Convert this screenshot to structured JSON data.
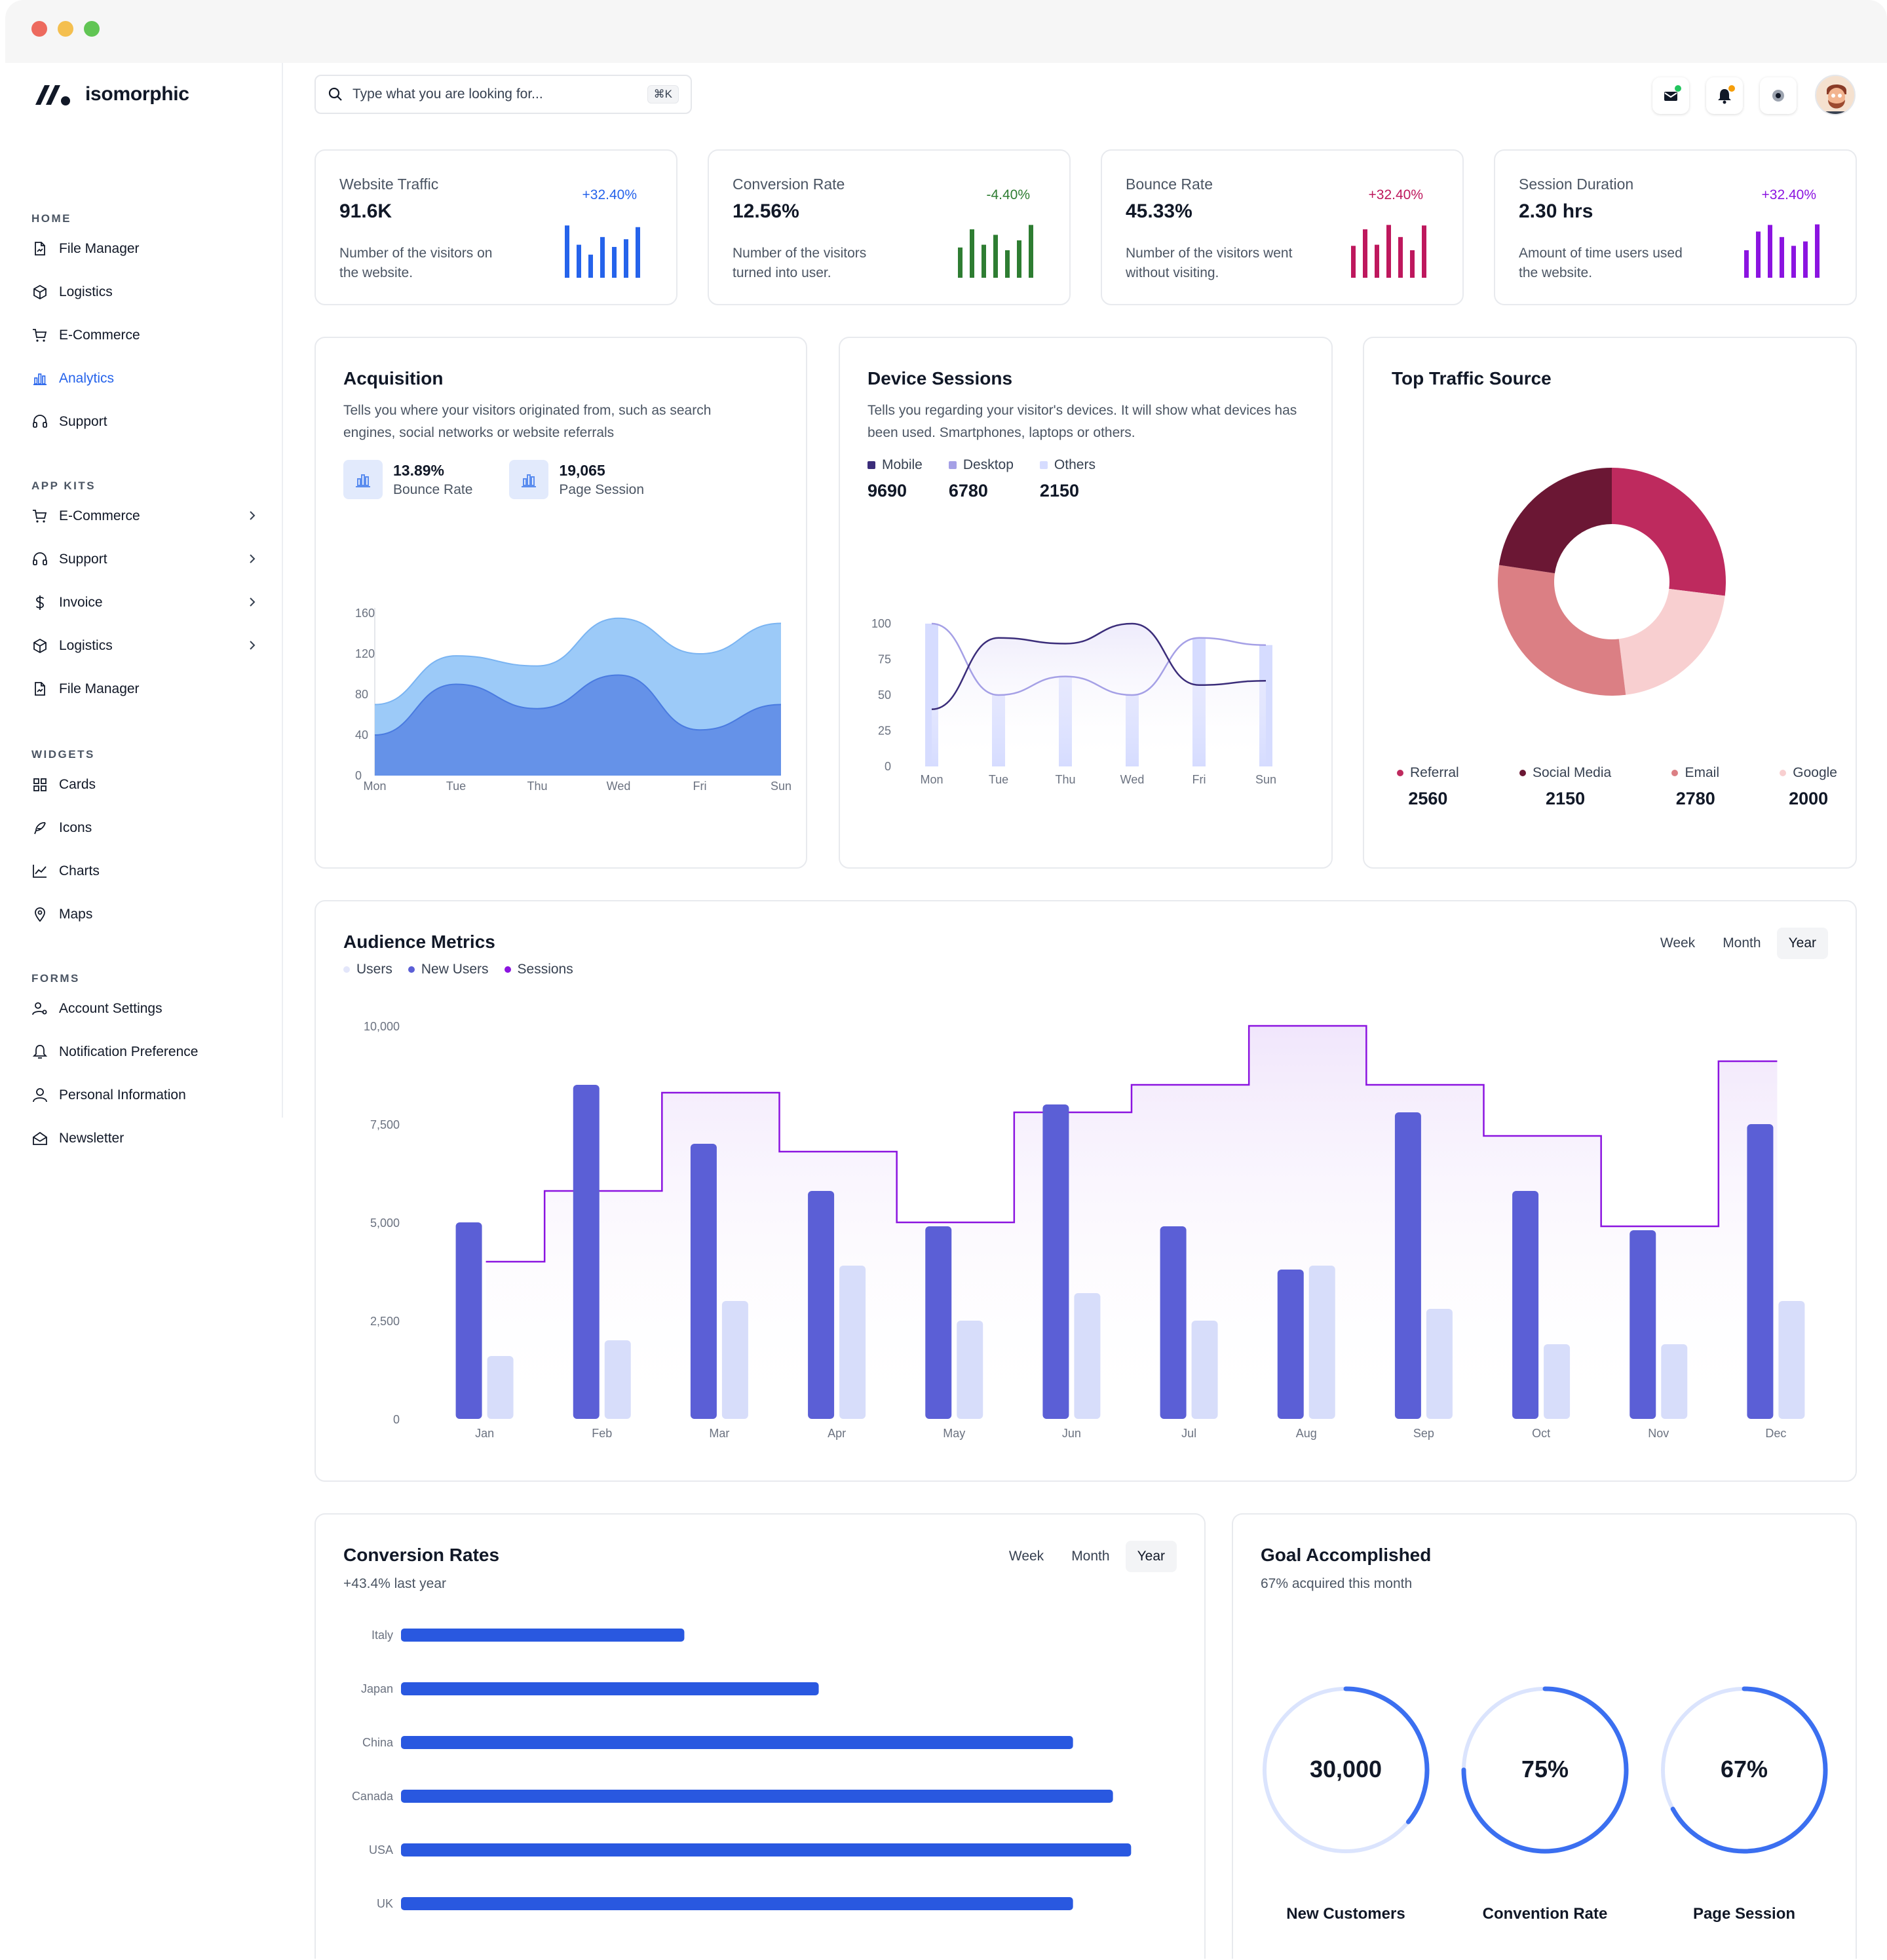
{
  "app": {
    "name": "isomorphic"
  },
  "sidebar": {
    "sections": [
      {
        "title": "HOME",
        "items": [
          {
            "label": "File Manager",
            "icon": "file-manager-icon"
          },
          {
            "label": "Logistics",
            "icon": "box-icon"
          },
          {
            "label": "E-Commerce",
            "icon": "cart-icon"
          },
          {
            "label": "Analytics",
            "icon": "analytics-icon",
            "active": true
          },
          {
            "label": "Support",
            "icon": "headset-icon"
          }
        ]
      },
      {
        "title": "APP KITS",
        "items": [
          {
            "label": "E-Commerce",
            "icon": "cart-icon",
            "chevron": true
          },
          {
            "label": "Support",
            "icon": "headset-icon",
            "chevron": true
          },
          {
            "label": "Invoice",
            "icon": "dollar-icon",
            "chevron": true
          },
          {
            "label": "Logistics",
            "icon": "box-icon",
            "chevron": true
          },
          {
            "label": "File Manager",
            "icon": "file-manager-icon"
          }
        ]
      },
      {
        "title": "WIDGETS",
        "items": [
          {
            "label": "Cards",
            "icon": "grid-icon"
          },
          {
            "label": "Icons",
            "icon": "feather-icon"
          },
          {
            "label": "Charts",
            "icon": "line-chart-icon"
          },
          {
            "label": "Maps",
            "icon": "map-pin-icon"
          }
        ]
      },
      {
        "title": "FORMS",
        "items": [
          {
            "label": "Account Settings",
            "icon": "user-gear-icon"
          },
          {
            "label": "Notification Preference",
            "icon": "bell-icon"
          },
          {
            "label": "Personal Information",
            "icon": "user-icon"
          },
          {
            "label": "Newsletter",
            "icon": "envelope-open-icon"
          }
        ]
      }
    ]
  },
  "header": {
    "search_placeholder": "Type what you are looking for...",
    "search_shortcut": "⌘K"
  },
  "kpis": [
    {
      "title": "Website Traffic",
      "value": "91.6K",
      "change": "+32.40%",
      "desc": "Number of the visitors on the website.",
      "color": "#2563eb",
      "bars": [
        0.95,
        0.6,
        0.42,
        0.74,
        0.56,
        0.7,
        0.92
      ]
    },
    {
      "title": "Conversion Rate",
      "value": "12.56%",
      "change": "-4.40%",
      "desc": "Number of the visitors turned into user.",
      "color": "#2e7d32",
      "bars": [
        0.55,
        0.88,
        0.6,
        0.78,
        0.5,
        0.68,
        0.96
      ]
    },
    {
      "title": "Bounce Rate",
      "value": "45.33%",
      "change": "+32.40%",
      "desc": "Number of the visitors went without visiting.",
      "color": "#be185d",
      "bars": [
        0.58,
        0.88,
        0.6,
        0.96,
        0.74,
        0.5,
        0.95
      ]
    },
    {
      "title": "Session Duration",
      "value": "2.30 hrs",
      "change": "+32.40%",
      "desc": "Amount of time users used the website.",
      "color": "#8b14e0",
      "bars": [
        0.5,
        0.84,
        0.96,
        0.74,
        0.58,
        0.66,
        0.97
      ]
    }
  ],
  "acquisition": {
    "title": "Acquisition",
    "desc": "Tells you where your visitors originated from, such as search engines, social networks or website referrals",
    "stats": [
      {
        "value": "13.89%",
        "label": "Bounce Rate"
      },
      {
        "value": "19,065",
        "label": "Page Session"
      }
    ]
  },
  "device_sessions": {
    "title": "Device Sessions",
    "desc": "Tells you regarding your visitor's devices. It will show what devices has been used. Smartphones, laptops or others.",
    "legend": [
      {
        "label": "Mobile",
        "value": "9690",
        "color": "#3b2d7a"
      },
      {
        "label": "Desktop",
        "value": "6780",
        "color": "#a5a0e6"
      },
      {
        "label": "Others",
        "value": "2150",
        "color": "#d6dcff"
      }
    ]
  },
  "traffic_source": {
    "title": "Top Traffic Source",
    "items": [
      {
        "label": "Referral",
        "value": "2560",
        "color": "#be2a5e"
      },
      {
        "label": "Social Media",
        "value": "2150",
        "color": "#6b1734"
      },
      {
        "label": "Email",
        "value": "2780",
        "color": "#db7f84"
      },
      {
        "label": "Google",
        "value": "2000",
        "color": "#f8cfd0"
      }
    ]
  },
  "audience": {
    "title": "Audience Metrics",
    "legend": [
      {
        "label": "Users",
        "color": "#e3e6fa"
      },
      {
        "label": "New Users",
        "color": "#5b5fd6"
      },
      {
        "label": "Sessions",
        "color": "#8b14e0"
      }
    ],
    "tabs": [
      "Week",
      "Month",
      "Year"
    ],
    "active_tab": "Year"
  },
  "conversion_rates": {
    "title": "Conversion Rates",
    "subtitle": "+43.4% last year",
    "tabs": [
      "Week",
      "Month",
      "Year"
    ],
    "active_tab": "Year"
  },
  "goal": {
    "title": "Goal Accomplished",
    "subtitle": "67% acquired this month",
    "rings": [
      {
        "value": "30,000",
        "label": "New Customers",
        "progress": 0.36
      },
      {
        "value": "75%",
        "label": "Convention Rate",
        "progress": 0.75
      },
      {
        "value": "67%",
        "label": "Page Session",
        "progress": 0.67
      }
    ]
  },
  "chart_data": [
    {
      "id": "acquisition",
      "type": "area",
      "x": [
        "Mon",
        "Tue",
        "Thu",
        "Wed",
        "Fri",
        "Sun"
      ],
      "ylim": [
        0,
        160
      ],
      "yticks": [
        0,
        40,
        80,
        120,
        160
      ],
      "series": [
        {
          "values": [
            70,
            118,
            108,
            155,
            120,
            150
          ],
          "color": "#9ccaf8"
        },
        {
          "values": [
            40,
            90,
            66,
            99,
            45,
            70
          ],
          "color": "#6592e8"
        }
      ]
    },
    {
      "id": "device_sessions",
      "type": "bar",
      "x": [
        "Mon",
        "Tue",
        "Thu",
        "Wed",
        "Fri",
        "Sun"
      ],
      "ylim": [
        0,
        100
      ],
      "yticks": [
        0,
        25,
        50,
        75,
        100
      ],
      "series": [
        {
          "name": "Mobile",
          "type": "line",
          "values": [
            40,
            90,
            86,
            100,
            57,
            60
          ],
          "color": "#3b2d7a"
        },
        {
          "name": "Desktop",
          "type": "line",
          "values": [
            100,
            50,
            63,
            50,
            90,
            85
          ],
          "color": "#a5a0e6"
        },
        {
          "name": "Others",
          "type": "bar",
          "values": [
            100,
            50,
            63,
            50,
            90,
            85
          ],
          "color": "#d6dcff"
        }
      ]
    },
    {
      "id": "traffic_source",
      "type": "pie",
      "categories": [
        "Referral",
        "Google",
        "Email",
        "Social Media"
      ],
      "values": [
        2560,
        2000,
        2780,
        2150
      ],
      "colors": [
        "#be2a5e",
        "#f8cfd0",
        "#db7f84",
        "#6b1734"
      ]
    },
    {
      "id": "audience",
      "type": "bar",
      "categories": [
        "Jan",
        "Feb",
        "Mar",
        "Apr",
        "May",
        "Jun",
        "Jul",
        "Aug",
        "Sep",
        "Oct",
        "Nov",
        "Dec"
      ],
      "ylim": [
        0,
        10000
      ],
      "yticks": [
        "0",
        "2,500",
        "5,000",
        "7,500",
        "10,000"
      ],
      "series": [
        {
          "name": "New Users",
          "values": [
            5000,
            8500,
            7000,
            5800,
            4900,
            8000,
            4900,
            3800,
            7800,
            5800,
            4800,
            7500
          ]
        },
        {
          "name": "Users",
          "values": [
            1600,
            2000,
            3000,
            3900,
            2500,
            3200,
            2500,
            3900,
            2800,
            1900,
            1900,
            3000
          ]
        },
        {
          "name": "Sessions",
          "type": "step",
          "values": [
            4000,
            5800,
            8300,
            6800,
            5000,
            7800,
            8500,
            10000,
            8500,
            7200,
            4900,
            9100
          ]
        }
      ]
    },
    {
      "id": "conversion_rates",
      "type": "bar",
      "orientation": "horizontal",
      "categories": [
        "Italy",
        "Japan",
        "China",
        "Canada",
        "USA",
        "UK"
      ],
      "values": [
        39,
        57.5,
        92.5,
        98,
        100.5,
        92.5
      ],
      "xlim": [
        0,
        100
      ]
    }
  ]
}
